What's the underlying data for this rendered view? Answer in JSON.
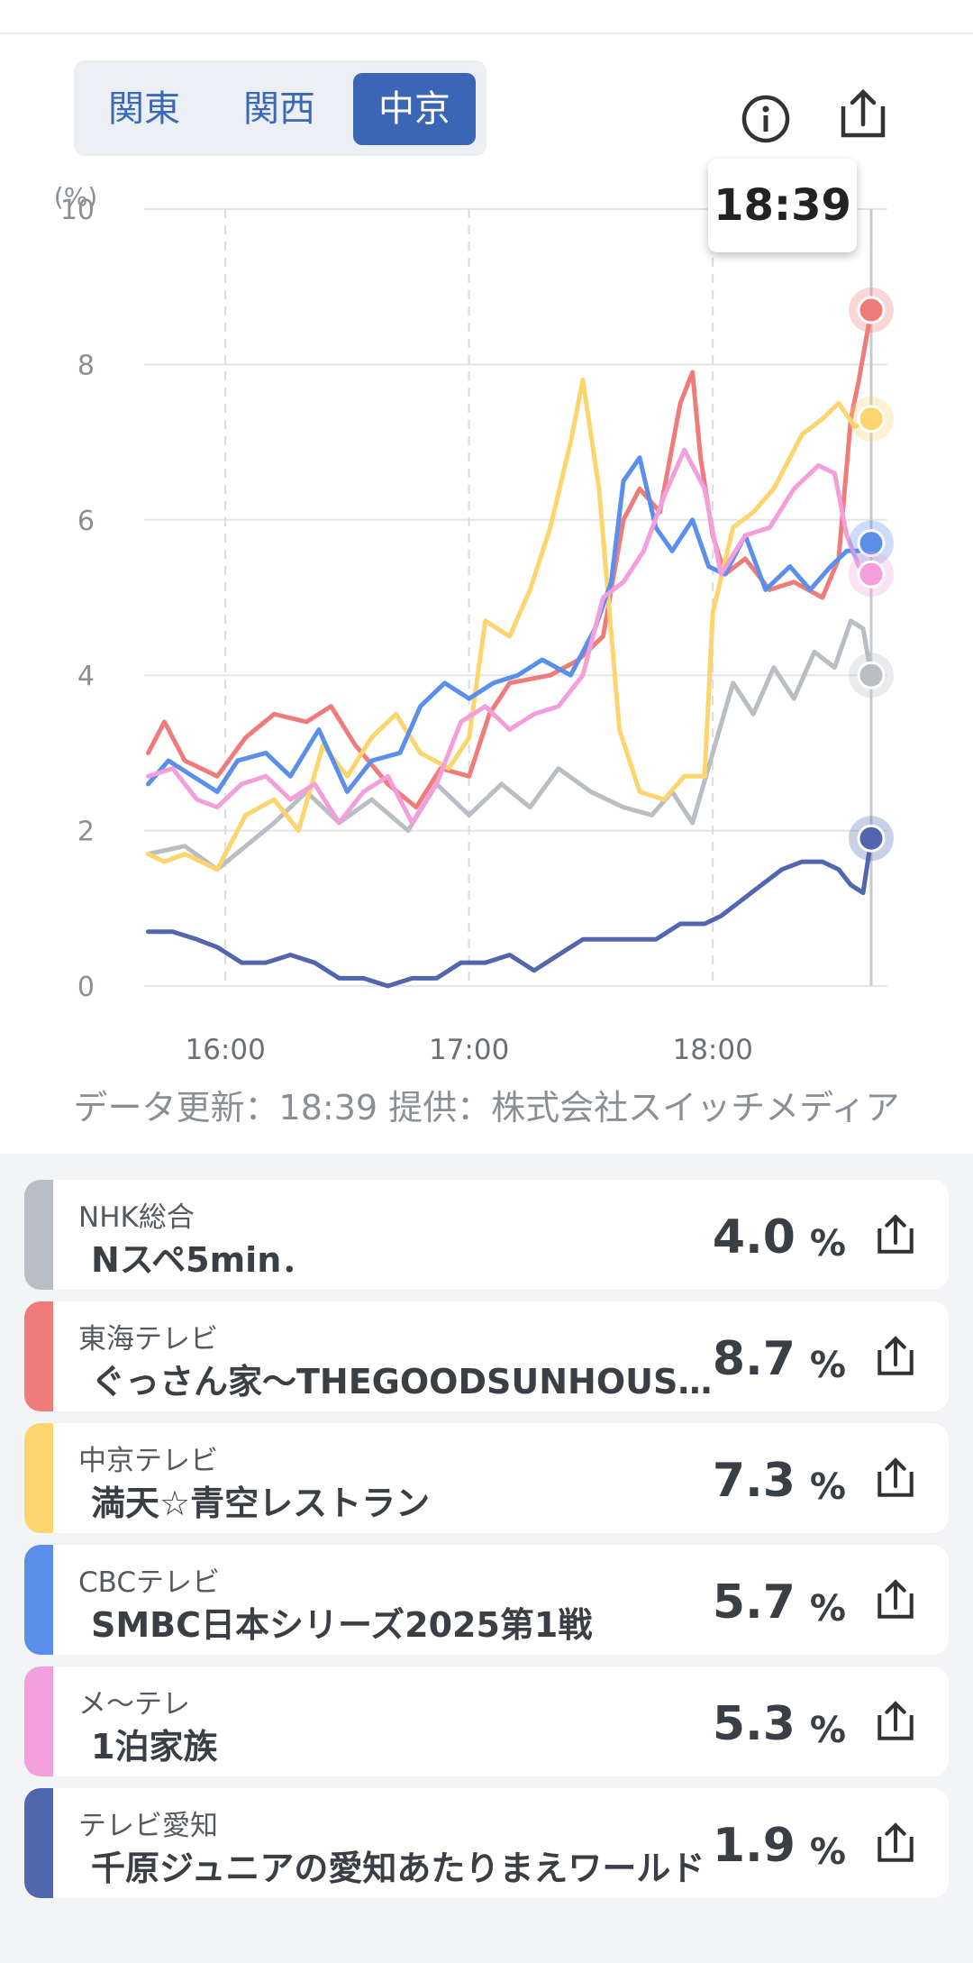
{
  "region_tabs": [
    {
      "label": "関東",
      "active": false
    },
    {
      "label": "関西",
      "active": false
    },
    {
      "label": "中京",
      "active": true
    }
  ],
  "icons": {
    "info": "info-icon",
    "share": "share-icon"
  },
  "tooltip_time": "18:39",
  "credit_text": "データ更新：18:39  提供：株式会社スイッチメディア",
  "chart_data": {
    "type": "line",
    "ylabel": "(%)",
    "ylim": [
      0,
      10
    ],
    "yticks": [
      "0",
      "2",
      "4",
      "6",
      "8",
      "10"
    ],
    "xticks": [
      "16:00",
      "17:00",
      "18:00"
    ],
    "xlim": [
      "15:40",
      "18:43"
    ],
    "cursor_time": "18:39",
    "grid": true,
    "series": [
      {
        "name": "NHK総合",
        "color": "#b9bec4",
        "points": [
          [
            "15:41",
            1.7
          ],
          [
            "15:50",
            1.8
          ],
          [
            "15:58",
            1.5
          ],
          [
            "16:05",
            1.8
          ],
          [
            "16:12",
            2.1
          ],
          [
            "16:20",
            2.5
          ],
          [
            "16:28",
            2.1
          ],
          [
            "16:36",
            2.4
          ],
          [
            "16:45",
            2.0
          ],
          [
            "16:52",
            2.6
          ],
          [
            "17:00",
            2.2
          ],
          [
            "17:08",
            2.6
          ],
          [
            "17:15",
            2.3
          ],
          [
            "17:22",
            2.8
          ],
          [
            "17:30",
            2.5
          ],
          [
            "17:38",
            2.3
          ],
          [
            "17:45",
            2.2
          ],
          [
            "17:50",
            2.5
          ],
          [
            "17:55",
            2.1
          ],
          [
            "18:00",
            3.0
          ],
          [
            "18:05",
            3.9
          ],
          [
            "18:10",
            3.5
          ],
          [
            "18:15",
            4.1
          ],
          [
            "18:20",
            3.7
          ],
          [
            "18:25",
            4.3
          ],
          [
            "18:30",
            4.1
          ],
          [
            "18:34",
            4.7
          ],
          [
            "18:37",
            4.6
          ],
          [
            "18:39",
            4.0
          ]
        ]
      },
      {
        "name": "東海テレビ",
        "color": "#f07b7b",
        "points": [
          [
            "15:41",
            3.0
          ],
          [
            "15:45",
            3.4
          ],
          [
            "15:50",
            2.9
          ],
          [
            "15:58",
            2.7
          ],
          [
            "16:05",
            3.2
          ],
          [
            "16:12",
            3.5
          ],
          [
            "16:20",
            3.4
          ],
          [
            "16:26",
            3.6
          ],
          [
            "16:32",
            3.1
          ],
          [
            "16:40",
            2.6
          ],
          [
            "16:47",
            2.3
          ],
          [
            "16:53",
            2.8
          ],
          [
            "17:00",
            2.7
          ],
          [
            "17:05",
            3.5
          ],
          [
            "17:10",
            3.9
          ],
          [
            "17:20",
            4.0
          ],
          [
            "17:27",
            4.2
          ],
          [
            "17:33",
            4.5
          ],
          [
            "17:38",
            6.0
          ],
          [
            "17:42",
            6.4
          ],
          [
            "17:47",
            6.1
          ],
          [
            "17:52",
            7.5
          ],
          [
            "17:55",
            7.9
          ],
          [
            "17:57",
            6.8
          ],
          [
            "18:00",
            5.8
          ],
          [
            "18:03",
            5.3
          ],
          [
            "18:08",
            5.5
          ],
          [
            "18:14",
            5.1
          ],
          [
            "18:20",
            5.2
          ],
          [
            "18:27",
            5.0
          ],
          [
            "18:31",
            5.5
          ],
          [
            "18:34",
            7.3
          ],
          [
            "18:36",
            7.8
          ],
          [
            "18:39",
            8.7
          ]
        ]
      },
      {
        "name": "中京テレビ",
        "color": "#fcd56f",
        "points": [
          [
            "15:41",
            1.7
          ],
          [
            "15:45",
            1.6
          ],
          [
            "15:50",
            1.7
          ],
          [
            "15:58",
            1.5
          ],
          [
            "16:05",
            2.2
          ],
          [
            "16:12",
            2.4
          ],
          [
            "16:18",
            2.0
          ],
          [
            "16:24",
            3.1
          ],
          [
            "16:30",
            2.7
          ],
          [
            "16:36",
            3.2
          ],
          [
            "16:42",
            3.5
          ],
          [
            "16:48",
            3.0
          ],
          [
            "16:55",
            2.8
          ],
          [
            "17:00",
            3.2
          ],
          [
            "17:04",
            4.7
          ],
          [
            "17:10",
            4.5
          ],
          [
            "17:15",
            5.1
          ],
          [
            "17:20",
            5.9
          ],
          [
            "17:25",
            7.0
          ],
          [
            "17:28",
            7.8
          ],
          [
            "17:32",
            6.4
          ],
          [
            "17:37",
            3.3
          ],
          [
            "17:42",
            2.5
          ],
          [
            "17:48",
            2.4
          ],
          [
            "17:53",
            2.7
          ],
          [
            "17:58",
            2.7
          ],
          [
            "18:00",
            4.8
          ],
          [
            "18:05",
            5.9
          ],
          [
            "18:10",
            6.1
          ],
          [
            "18:15",
            6.4
          ],
          [
            "18:22",
            7.1
          ],
          [
            "18:27",
            7.3
          ],
          [
            "18:31",
            7.5
          ],
          [
            "18:35",
            7.2
          ],
          [
            "18:39",
            7.3
          ]
        ]
      },
      {
        "name": "CBCテレビ",
        "color": "#5b8fec",
        "points": [
          [
            "15:41",
            2.6
          ],
          [
            "15:46",
            2.9
          ],
          [
            "15:52",
            2.7
          ],
          [
            "15:58",
            2.5
          ],
          [
            "16:03",
            2.9
          ],
          [
            "16:10",
            3.0
          ],
          [
            "16:16",
            2.7
          ],
          [
            "16:23",
            3.3
          ],
          [
            "16:30",
            2.5
          ],
          [
            "16:36",
            2.9
          ],
          [
            "16:43",
            3.0
          ],
          [
            "16:48",
            3.6
          ],
          [
            "16:54",
            3.9
          ],
          [
            "17:00",
            3.7
          ],
          [
            "17:06",
            3.9
          ],
          [
            "17:12",
            4.0
          ],
          [
            "17:18",
            4.2
          ],
          [
            "17:25",
            4.0
          ],
          [
            "17:31",
            4.6
          ],
          [
            "17:35",
            5.2
          ],
          [
            "17:38",
            6.5
          ],
          [
            "17:42",
            6.8
          ],
          [
            "17:46",
            5.9
          ],
          [
            "17:50",
            5.6
          ],
          [
            "17:55",
            6.0
          ],
          [
            "17:59",
            5.4
          ],
          [
            "18:03",
            5.3
          ],
          [
            "18:08",
            5.8
          ],
          [
            "18:13",
            5.1
          ],
          [
            "18:19",
            5.4
          ],
          [
            "18:24",
            5.1
          ],
          [
            "18:29",
            5.4
          ],
          [
            "18:33",
            5.6
          ],
          [
            "18:36",
            5.6
          ],
          [
            "18:39",
            5.7
          ]
        ]
      },
      {
        "name": "メ〜テレ",
        "color": "#f39fdb",
        "points": [
          [
            "15:41",
            2.7
          ],
          [
            "15:47",
            2.8
          ],
          [
            "15:53",
            2.4
          ],
          [
            "15:58",
            2.3
          ],
          [
            "16:04",
            2.6
          ],
          [
            "16:10",
            2.7
          ],
          [
            "16:16",
            2.4
          ],
          [
            "16:22",
            2.6
          ],
          [
            "16:28",
            2.1
          ],
          [
            "16:34",
            2.5
          ],
          [
            "16:40",
            2.7
          ],
          [
            "16:46",
            2.1
          ],
          [
            "16:52",
            2.6
          ],
          [
            "16:58",
            3.4
          ],
          [
            "17:04",
            3.6
          ],
          [
            "17:10",
            3.3
          ],
          [
            "17:16",
            3.5
          ],
          [
            "17:22",
            3.6
          ],
          [
            "17:28",
            4.0
          ],
          [
            "17:33",
            5.0
          ],
          [
            "17:38",
            5.2
          ],
          [
            "17:43",
            5.6
          ],
          [
            "17:48",
            6.3
          ],
          [
            "17:53",
            6.9
          ],
          [
            "17:58",
            6.4
          ],
          [
            "18:02",
            5.3
          ],
          [
            "18:08",
            5.8
          ],
          [
            "18:14",
            5.9
          ],
          [
            "18:20",
            6.4
          ],
          [
            "18:26",
            6.7
          ],
          [
            "18:30",
            6.6
          ],
          [
            "18:33",
            5.8
          ],
          [
            "18:36",
            5.4
          ],
          [
            "18:39",
            5.3
          ]
        ]
      },
      {
        "name": "テレビ愛知",
        "color": "#5166ad",
        "points": [
          [
            "15:41",
            0.7
          ],
          [
            "15:47",
            0.7
          ],
          [
            "15:53",
            0.6
          ],
          [
            "15:58",
            0.5
          ],
          [
            "16:04",
            0.3
          ],
          [
            "16:10",
            0.3
          ],
          [
            "16:16",
            0.4
          ],
          [
            "16:22",
            0.3
          ],
          [
            "16:28",
            0.1
          ],
          [
            "16:34",
            0.1
          ],
          [
            "16:40",
            0.0
          ],
          [
            "16:46",
            0.1
          ],
          [
            "16:52",
            0.1
          ],
          [
            "16:58",
            0.3
          ],
          [
            "17:04",
            0.3
          ],
          [
            "17:10",
            0.4
          ],
          [
            "17:16",
            0.2
          ],
          [
            "17:22",
            0.4
          ],
          [
            "17:28",
            0.6
          ],
          [
            "17:34",
            0.6
          ],
          [
            "17:40",
            0.6
          ],
          [
            "17:46",
            0.6
          ],
          [
            "17:52",
            0.8
          ],
          [
            "17:58",
            0.8
          ],
          [
            "18:02",
            0.9
          ],
          [
            "18:07",
            1.1
          ],
          [
            "18:12",
            1.3
          ],
          [
            "18:17",
            1.5
          ],
          [
            "18:22",
            1.6
          ],
          [
            "18:27",
            1.6
          ],
          [
            "18:31",
            1.5
          ],
          [
            "18:34",
            1.3
          ],
          [
            "18:37",
            1.2
          ],
          [
            "18:39",
            1.9
          ]
        ]
      }
    ]
  },
  "channels": [
    {
      "station": "NHK総合",
      "program": "Nスペ5min．",
      "value": "4.0",
      "unit": "%",
      "color": "#b9bec4"
    },
    {
      "station": "東海テレビ",
      "program": "ぐっさん家〜THEGOODSUNHOUSE〜",
      "value": "8.7",
      "unit": "%",
      "color": "#f07b7b"
    },
    {
      "station": "中京テレビ",
      "program": "満天☆青空レストラン",
      "value": "7.3",
      "unit": "%",
      "color": "#fcd56f"
    },
    {
      "station": "CBCテレビ",
      "program": "SMBC日本シリーズ2025第1戦",
      "value": "5.7",
      "unit": "%",
      "color": "#5b8fec"
    },
    {
      "station": "メ〜テレ",
      "program": "1泊家族",
      "value": "5.3",
      "unit": "%",
      "color": "#f39fdb"
    },
    {
      "station": "テレビ愛知",
      "program": "千原ジュニアの愛知あたりまえワールド",
      "value": "1.9",
      "unit": "%",
      "color": "#5166ad"
    }
  ]
}
